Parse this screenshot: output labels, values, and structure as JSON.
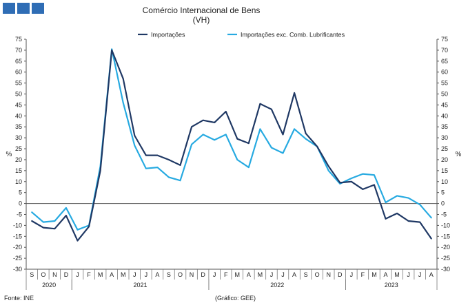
{
  "chart_data": {
    "type": "line",
    "title": "Comércio Internacional de Bens",
    "subtitle": "(VH)",
    "ylabel_left": "%",
    "ylabel_right": "%",
    "ylim": [
      -30,
      75
    ],
    "yticks": [
      75,
      70,
      65,
      60,
      55,
      50,
      45,
      40,
      35,
      30,
      25,
      20,
      15,
      10,
      5,
      0,
      -5,
      -10,
      -15,
      -20,
      -25,
      -30
    ],
    "categories": [
      "S",
      "O",
      "N",
      "D",
      "J",
      "F",
      "M",
      "A",
      "M",
      "J",
      "J",
      "A",
      "S",
      "O",
      "N",
      "D",
      "J",
      "F",
      "M",
      "A",
      "M",
      "J",
      "J",
      "A",
      "S",
      "O",
      "N",
      "D",
      "J",
      "F",
      "M",
      "A",
      "M",
      "J",
      "J",
      "A"
    ],
    "year_labels": [
      {
        "label": "2020",
        "start": 0,
        "end": 3
      },
      {
        "label": "2021",
        "start": 4,
        "end": 15
      },
      {
        "label": "2022",
        "start": 16,
        "end": 27
      },
      {
        "label": "2023",
        "start": 28,
        "end": 35
      }
    ],
    "series": [
      {
        "name": "Importações",
        "color": "#1f3864",
        "values": [
          -8,
          -11,
          -11.5,
          -5.5,
          -17,
          -10.5,
          15,
          70,
          57,
          31,
          22,
          22,
          20,
          17.5,
          35,
          38,
          37,
          42,
          29.5,
          27.5,
          45.5,
          43,
          31.5,
          50.5,
          32,
          26,
          17,
          9.5,
          10,
          6.5,
          8.5,
          -7,
          -4.5,
          -8,
          -8.5,
          -16
        ]
      },
      {
        "name": "Importações exc. Comb. Lubrificantes",
        "color": "#27aae1",
        "values": [
          -4,
          -8.5,
          -8,
          -2,
          -12,
          -10,
          17,
          70.5,
          46,
          26.5,
          16,
          16.5,
          12,
          10.5,
          27,
          31.5,
          29,
          31.5,
          20,
          16.5,
          34,
          25.5,
          23,
          34,
          29.5,
          26,
          15,
          9,
          11.5,
          13.5,
          13,
          0.5,
          3.5,
          2.5,
          -0.5,
          -6.5
        ]
      }
    ],
    "legend_position": "top-center",
    "grid": false
  },
  "footer": {
    "source": "Fonte: INE",
    "credit": "(Gráfico: GEE)"
  },
  "logo": {
    "squares": 3,
    "color": "#2f6db5"
  }
}
